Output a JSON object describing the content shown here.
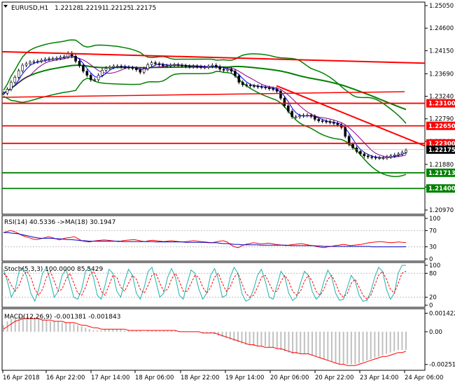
{
  "chart_data": {
    "type": "line",
    "symbol": "EURUSD,H1",
    "ohlc_header": [
      "1.22128",
      "1.22191",
      "1.22125",
      "1.22175"
    ],
    "x_ticks": [
      "16 Apr 2018",
      "16 Apr 22:00",
      "17 Apr 14:00",
      "18 Apr 06:00",
      "18 Apr 22:00",
      "19 Apr 14:00",
      "20 Apr 06:00",
      "20 Apr 22:00",
      "23 Apr 14:00",
      "24 Apr 06:00"
    ],
    "price_ticks": [
      "1.25050",
      "1.24600",
      "1.24150",
      "1.23690",
      "1.23240",
      "1.22790",
      "1.22340",
      "1.21880",
      "1.21430",
      "1.20970"
    ],
    "price_range": [
      1.2097,
      1.2505
    ],
    "close": [
      1.233,
      1.2338,
      1.2352,
      1.2362,
      1.2375,
      1.2386,
      1.2389,
      1.2392,
      1.2393,
      1.2394,
      1.2396,
      1.2398,
      1.2399,
      1.2399,
      1.24,
      1.2402,
      1.2403,
      1.241,
      1.2404,
      1.2394,
      1.2385,
      1.2374,
      1.2366,
      1.2357,
      1.2357,
      1.2366,
      1.2376,
      1.238,
      1.2382,
      1.2384,
      1.2384,
      1.2383,
      1.2382,
      1.2381,
      1.238,
      1.2377,
      1.2372,
      1.2379,
      1.2387,
      1.2391,
      1.2389,
      1.2387,
      1.2385,
      1.2385,
      1.2386,
      1.2387,
      1.2386,
      1.2385,
      1.2384,
      1.2383,
      1.2384,
      1.2383,
      1.2382,
      1.2382,
      1.2384,
      1.2386,
      1.2383,
      1.2378,
      1.2376,
      1.2378,
      1.2374,
      1.2365,
      1.2352,
      1.2347,
      1.2346,
      1.2345,
      1.2344,
      1.2343,
      1.2342,
      1.2341,
      1.2339,
      1.2338,
      1.2334,
      1.232,
      1.2305,
      1.2294,
      1.2283,
      1.2283,
      1.2285,
      1.2286,
      1.2286,
      1.2284,
      1.2278,
      1.2275,
      1.2274,
      1.2273,
      1.2272,
      1.227,
      1.2267,
      1.2262,
      1.2244,
      1.2228,
      1.2221,
      1.2214,
      1.2209,
      1.2205,
      1.2203,
      1.2202,
      1.2201,
      1.2201,
      1.2201,
      1.2203,
      1.2205,
      1.2207,
      1.2209,
      1.2212,
      1.2216
    ],
    "horizontal_levels": [
      {
        "price": 1.231,
        "label": "1.23100",
        "color": "#ff0000"
      },
      {
        "price": 1.2265,
        "label": "1.22650",
        "color": "#ff0000"
      },
      {
        "price": 1.223,
        "label": "1.22300",
        "color": "#ff0000"
      },
      {
        "price": 1.21713,
        "label": "1.21713",
        "color": "#008000"
      },
      {
        "price": 1.214,
        "label": "1.21400",
        "color": "#008000"
      }
    ],
    "current_price": {
      "price": 1.22175,
      "label": "1.22175"
    },
    "rsi": {
      "label": "RSI(14) 40.5336 ->MA(18) 30.1947",
      "ticks": [
        "100",
        "70",
        "30",
        "0"
      ],
      "range": [
        0,
        100
      ],
      "values": [
        65,
        68,
        70,
        67,
        63,
        58,
        55,
        52,
        49,
        48,
        50,
        52,
        55,
        53,
        50,
        47,
        50,
        52,
        53,
        55,
        50,
        45,
        43,
        42,
        44,
        45,
        46,
        47,
        46,
        45,
        44,
        43,
        45,
        46,
        47,
        48,
        46,
        44,
        43,
        45,
        46,
        45,
        44,
        43,
        44,
        45,
        44,
        43,
        42,
        43,
        44,
        45,
        44,
        43,
        42,
        41,
        40,
        42,
        44,
        45,
        42,
        35,
        30,
        28,
        33,
        36,
        38,
        40,
        39,
        37,
        38,
        39,
        38,
        36,
        35,
        34,
        33,
        35,
        36,
        37,
        38,
        36,
        34,
        33,
        31,
        29,
        28,
        30,
        31,
        33,
        34,
        36,
        35,
        33,
        34,
        35,
        36,
        38,
        40,
        41,
        42,
        43,
        42,
        41,
        40,
        41,
        42,
        41,
        40.5
      ],
      "ma": [
        65,
        65,
        64,
        63,
        62,
        60,
        58,
        56,
        54,
        52,
        51,
        51,
        51,
        51,
        50,
        50,
        49,
        48,
        48,
        47,
        46,
        45,
        45,
        44,
        44,
        44,
        44,
        44,
        44,
        44,
        44,
        44,
        43,
        43,
        43,
        43,
        43,
        43,
        43,
        43,
        43,
        42,
        42,
        42,
        42,
        42,
        42,
        42,
        42,
        41,
        41,
        41,
        41,
        41,
        41,
        40,
        40,
        40,
        39,
        38,
        38,
        37,
        36,
        36,
        35,
        35,
        35,
        35,
        35,
        34,
        34,
        34,
        34,
        34,
        34,
        34,
        34,
        33,
        33,
        33,
        33,
        33,
        33,
        33,
        32,
        32,
        31,
        31,
        31,
        31,
        31,
        31,
        31,
        31,
        31,
        31,
        31,
        31,
        31,
        30,
        30,
        30,
        30,
        30,
        30,
        30,
        30,
        30,
        30.2
      ]
    },
    "stoch": {
      "label": "Stoch(5,3,3) 100.0000 85.5429",
      "ticks": [
        "100",
        "80",
        "20",
        "0"
      ],
      "range": [
        0,
        100
      ],
      "main": [
        90,
        60,
        20,
        40,
        85,
        95,
        70,
        30,
        10,
        40,
        80,
        95,
        60,
        20,
        35,
        75,
        90,
        55,
        20,
        15,
        40,
        85,
        95,
        70,
        25,
        15,
        50,
        90,
        80,
        35,
        20,
        60,
        90,
        75,
        30,
        15,
        45,
        85,
        95,
        60,
        20,
        30,
        70,
        92,
        70,
        25,
        15,
        55,
        88,
        80,
        40,
        15,
        30,
        75,
        92,
        65,
        20,
        25,
        70,
        95,
        80,
        30,
        10,
        15,
        40,
        75,
        90,
        60,
        20,
        15,
        50,
        85,
        70,
        30,
        12,
        20,
        55,
        85,
        75,
        35,
        15,
        25,
        60,
        88,
        70,
        30,
        12,
        15,
        45,
        75,
        60,
        25,
        10,
        12,
        35,
        70,
        95,
        85,
        40,
        15,
        30,
        80,
        100,
        100
      ],
      "signal": [
        80,
        70,
        50,
        35,
        50,
        75,
        85,
        70,
        40,
        25,
        40,
        70,
        85,
        60,
        35,
        40,
        65,
        80,
        55,
        30,
        25,
        45,
        75,
        85,
        65,
        35,
        25,
        50,
        75,
        70,
        45,
        35,
        55,
        75,
        65,
        40,
        30,
        50,
        75,
        80,
        55,
        35,
        40,
        65,
        80,
        60,
        35,
        35,
        55,
        75,
        70,
        45,
        30,
        45,
        70,
        80,
        55,
        35,
        45,
        70,
        80,
        55,
        30,
        20,
        25,
        45,
        70,
        75,
        55,
        35,
        35,
        60,
        75,
        60,
        35,
        25,
        35,
        60,
        75,
        60,
        35,
        25,
        40,
        65,
        75,
        55,
        30,
        20,
        30,
        55,
        65,
        45,
        25,
        15,
        25,
        50,
        75,
        85,
        65,
        40,
        30,
        55,
        80,
        85.5
      ]
    },
    "macd": {
      "label": "MACD(12,26,9) -0.001381 -0.001843",
      "ticks": [
        "0.001422",
        "0.00",
        "-0.002516"
      ],
      "range": [
        -0.0028,
        0.0015
      ],
      "hist": [
        0.0005,
        0.0008,
        0.001,
        0.0011,
        0.0012,
        0.0012,
        0.0011,
        0.0011,
        0.001,
        0.001,
        0.0009,
        0.0009,
        0.0008,
        0.0008,
        0.0008,
        0.0007,
        0.0007,
        0.0007,
        0.0006,
        0.0005,
        0.0004,
        0.0003,
        0.0002,
        0.0001,
        0.0001,
        0.0001,
        0.0002,
        0.0002,
        0.0002,
        0.0002,
        0.0002,
        0.0001,
        0.0001,
        0.0001,
        0.0001,
        0.0001,
        0.0,
        0.0001,
        0.0001,
        0.0001,
        0.0001,
        0.0001,
        0.0001,
        0.0001,
        0.0001,
        0.0,
        0.0,
        0.0,
        0.0,
        0.0,
        0.0,
        -0.0001,
        -0.0001,
        -0.0001,
        -0.0002,
        -0.0003,
        -0.0004,
        -0.0005,
        -0.0006,
        -0.0007,
        -0.0008,
        -0.0009,
        -0.001,
        -0.001,
        -0.0011,
        -0.0011,
        -0.0011,
        -0.0011,
        -0.0012,
        -0.0012,
        -0.0013,
        -0.0014,
        -0.0015,
        -0.0016,
        -0.0017,
        -0.0017,
        -0.0017,
        -0.0017,
        -0.0017,
        -0.0018,
        -0.0019,
        -0.002,
        -0.0021,
        -0.0022,
        -0.0023,
        -0.0024,
        -0.0025,
        -0.0025,
        -0.0025,
        -0.0025,
        -0.0025,
        -0.0024,
        -0.0023,
        -0.0022,
        -0.0021,
        -0.002,
        -0.0019,
        -0.0018,
        -0.0017,
        -0.0016,
        -0.0015,
        -0.0014,
        -0.0014,
        -0.0014
      ],
      "signal": [
        0.0002,
        0.0004,
        0.0006,
        0.0008,
        0.0009,
        0.001,
        0.001,
        0.001,
        0.001,
        0.001,
        0.0009,
        0.0009,
        0.0009,
        0.0008,
        0.0008,
        0.0008,
        0.0007,
        0.0007,
        0.0007,
        0.0006,
        0.0005,
        0.0005,
        0.0004,
        0.0003,
        0.0003,
        0.0002,
        0.0002,
        0.0002,
        0.0002,
        0.0002,
        0.0002,
        0.0002,
        0.0001,
        0.0001,
        0.0001,
        0.0001,
        0.0001,
        0.0001,
        0.0001,
        0.0001,
        0.0001,
        0.0001,
        0.0001,
        0.0001,
        0.0001,
        0.0,
        0.0,
        0.0,
        0.0,
        0.0,
        0.0,
        -0.0001,
        -0.0001,
        -0.0001,
        -0.0001,
        -0.0002,
        -0.0003,
        -0.0004,
        -0.0005,
        -0.0006,
        -0.0007,
        -0.0008,
        -0.0009,
        -0.001,
        -0.001,
        -0.0011,
        -0.0011,
        -0.0012,
        -0.0012,
        -0.0012,
        -0.0013,
        -0.0013,
        -0.0014,
        -0.0015,
        -0.0016,
        -0.0016,
        -0.0017,
        -0.0017,
        -0.0017,
        -0.0018,
        -0.0019,
        -0.002,
        -0.0021,
        -0.0022,
        -0.0023,
        -0.0024,
        -0.0025,
        -0.0025,
        -0.0026,
        -0.0026,
        -0.0026,
        -0.0025,
        -0.0024,
        -0.0023,
        -0.0022,
        -0.0021,
        -0.002,
        -0.0019,
        -0.0019,
        -0.0018,
        -0.0017,
        -0.0016,
        -0.0016,
        -0.0015
      ]
    },
    "colors": {
      "bollinger": "#008000",
      "resistance": "#ff0000",
      "support": "#008000",
      "ma_fast": "#0000ff",
      "ma_slow": "#8b008b",
      "rsi": "#ff0000",
      "rsi_ma": "#0000cd",
      "stoch_main": "#20b2aa",
      "stoch_signal": "#ff0000",
      "macd_hist": "#c0c0c0",
      "macd_signal": "#ff0000",
      "candle_body": "#000000"
    }
  }
}
